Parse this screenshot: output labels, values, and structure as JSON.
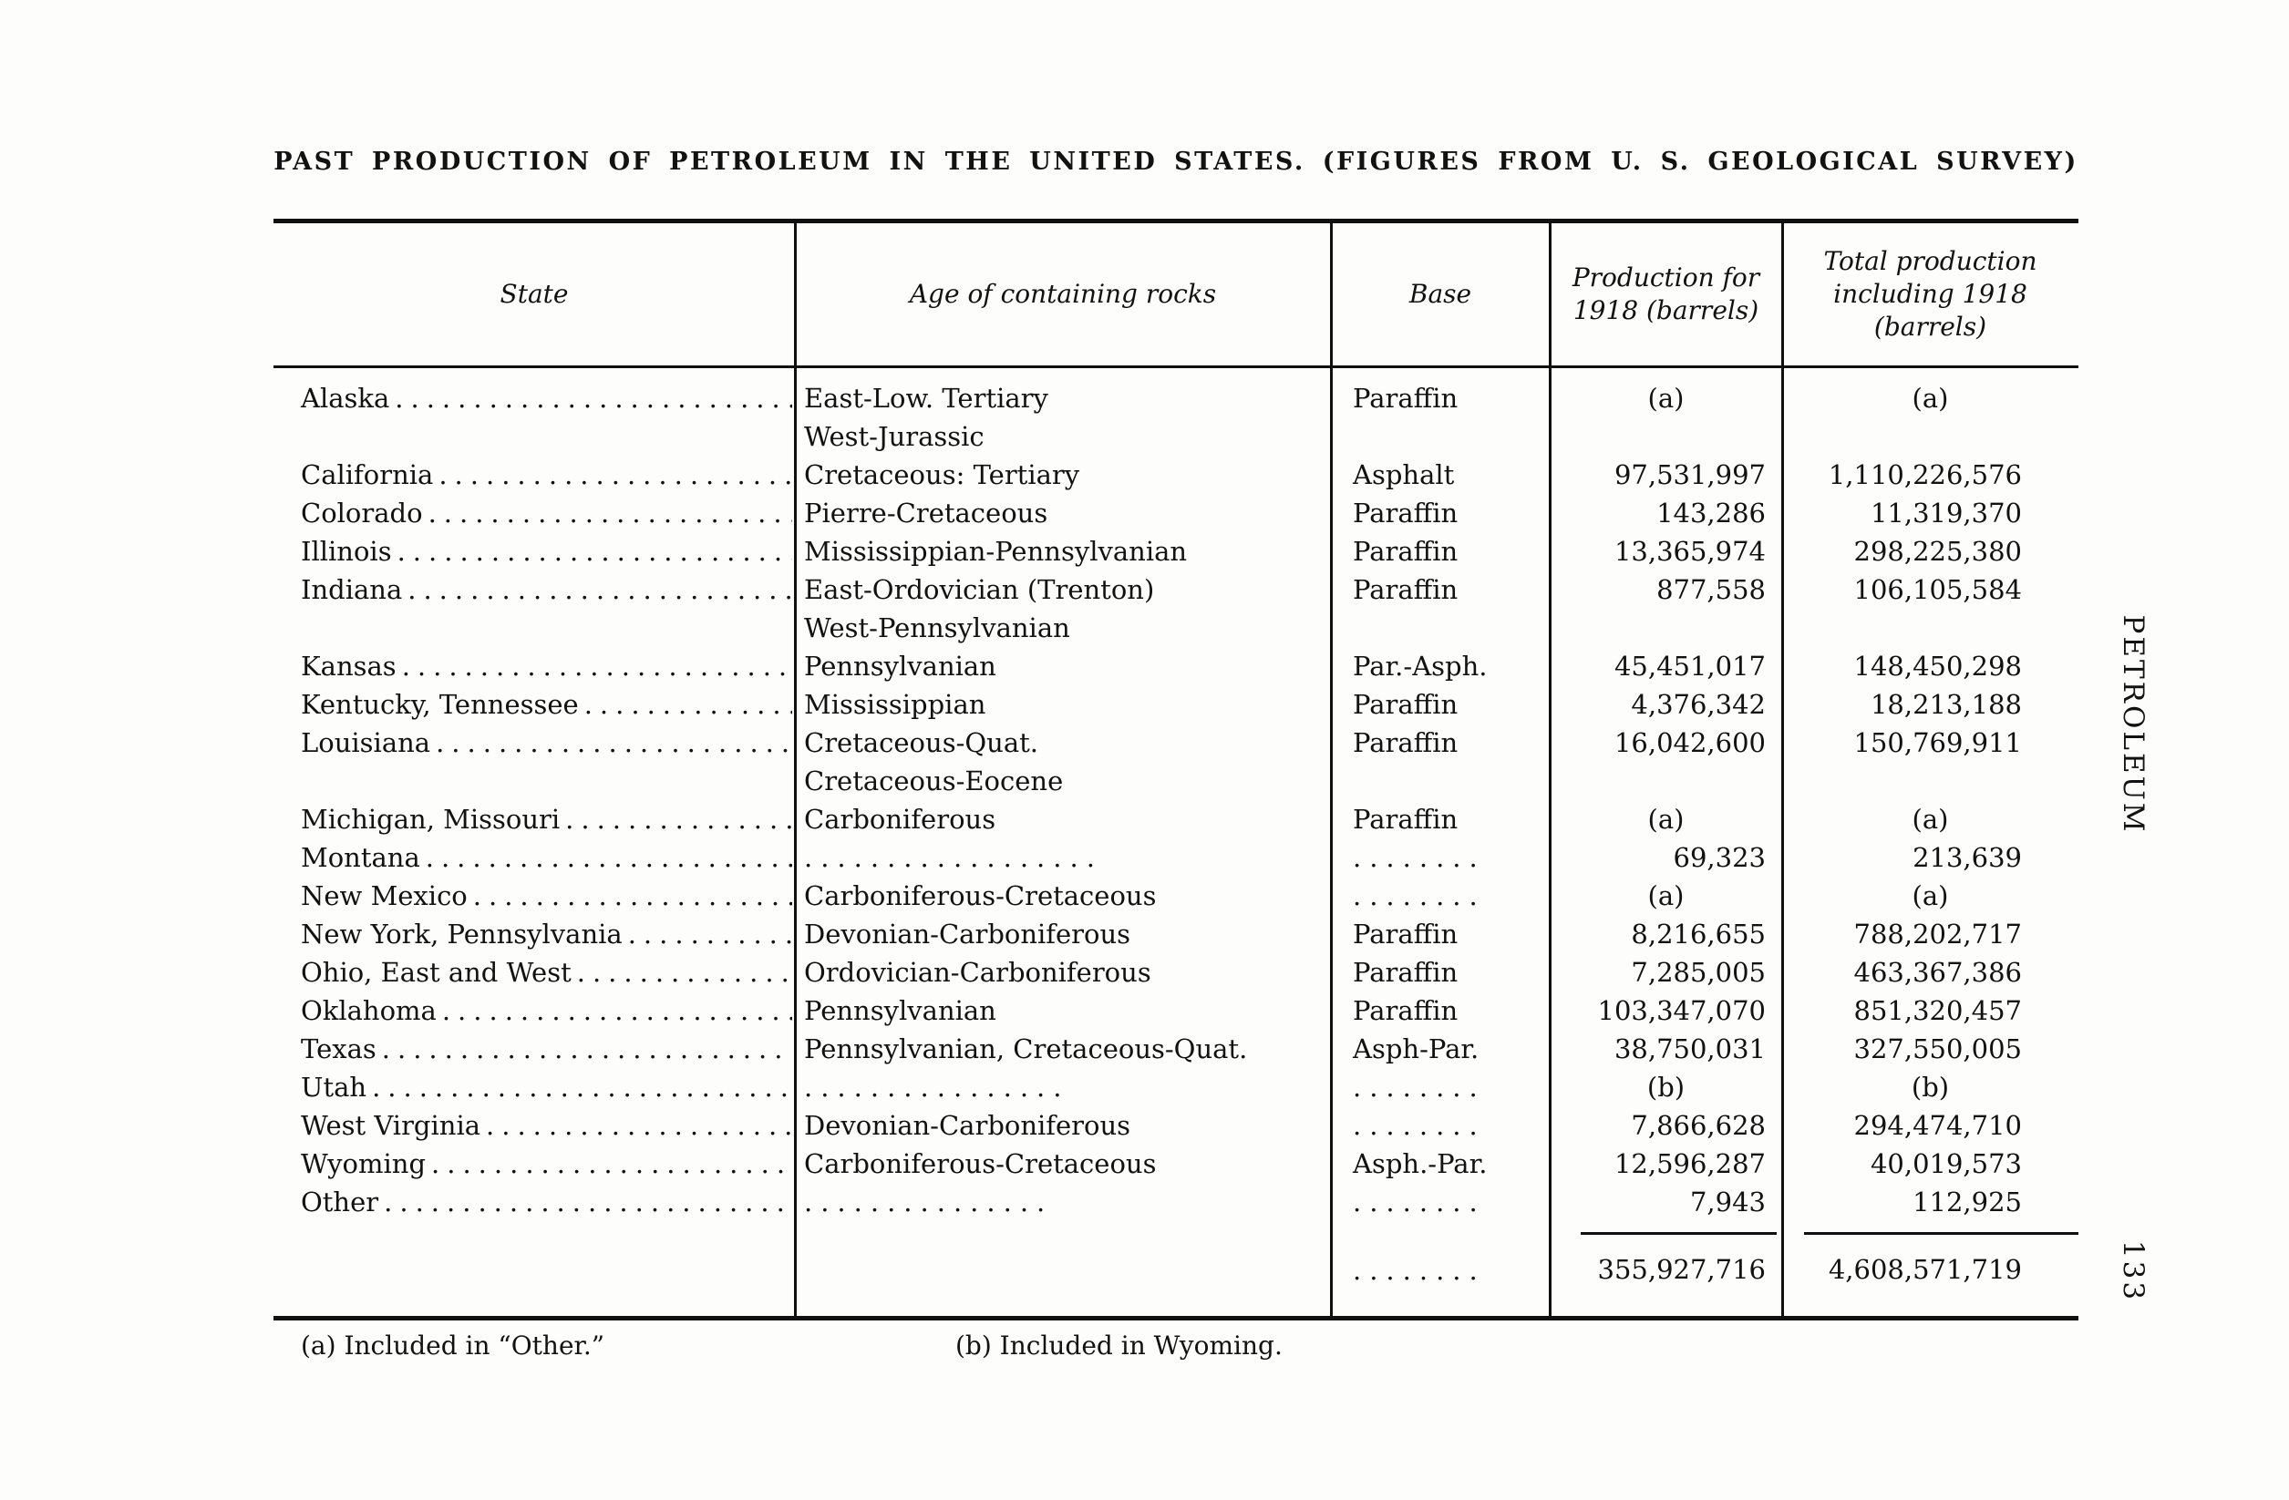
{
  "page": {
    "title": "PAST PRODUCTION OF PETROLEUM IN THE UNITED STATES. (FIGURES FROM U. S. GEOLOGICAL SURVEY)",
    "margin_label": "PETROLEUM",
    "page_number": "133"
  },
  "table": {
    "headers": [
      "State",
      "Age of containing rocks",
      "Base",
      "Production for\n1918 (barrels)",
      "Total production\nincluding 1918\n(barrels)"
    ],
    "rows": [
      {
        "state": "Alaska",
        "age": [
          "East-Low. Tertiary",
          "West-Jurassic"
        ],
        "base": "Paraffin",
        "production_1918": "(a)",
        "total_production": "(a)"
      },
      {
        "state": "California",
        "age": [
          "Cretaceous: Tertiary"
        ],
        "base": "Asphalt",
        "production_1918": "97,531,997",
        "total_production": "1,110,226,576"
      },
      {
        "state": "Colorado",
        "age": [
          "Pierre-Cretaceous"
        ],
        "base": "Paraffin",
        "production_1918": "143,286",
        "total_production": "11,319,370"
      },
      {
        "state": "Illinois",
        "age": [
          "Mississippian-Pennsylvanian"
        ],
        "base": "Paraffin",
        "production_1918": "13,365,974",
        "total_production": "298,225,380"
      },
      {
        "state": "Indiana",
        "age": [
          "East-Ordovician (Trenton)",
          "West-Pennsylvanian"
        ],
        "base": "Paraffin",
        "production_1918": "877,558",
        "total_production": "106,105,584"
      },
      {
        "state": "Kansas",
        "age": [
          "Pennsylvanian"
        ],
        "base": "Par.-Asph.",
        "production_1918": "45,451,017",
        "total_production": "148,450,298"
      },
      {
        "state": "Kentucky, Tennessee",
        "age": [
          "Mississippian"
        ],
        "base": "Paraffin",
        "production_1918": "4,376,342",
        "total_production": "18,213,188"
      },
      {
        "state": "Louisiana",
        "age": [
          "Cretaceous-Quat.",
          "Cretaceous-Eocene"
        ],
        "base": "Paraffin",
        "production_1918": "16,042,600",
        "total_production": "150,769,911"
      },
      {
        "state": "Michigan, Missouri",
        "age": [
          "Carboniferous"
        ],
        "base": "Paraffin",
        "production_1918": "(a)",
        "total_production": "(a)"
      },
      {
        "state": "Montana",
        "age": [
          ".................."
        ],
        "base": "........",
        "production_1918": "69,323",
        "total_production": "213,639"
      },
      {
        "state": "New Mexico",
        "age": [
          "Carboniferous-Cretaceous"
        ],
        "base": "........",
        "production_1918": "(a)",
        "total_production": "(a)"
      },
      {
        "state": "New York, Pennsylvania",
        "age": [
          "Devonian-Carboniferous"
        ],
        "base": "Paraffin",
        "production_1918": "8,216,655",
        "total_production": "788,202,717"
      },
      {
        "state": "Ohio, East and West",
        "age": [
          "Ordovician-Carboniferous"
        ],
        "base": "Paraffin",
        "production_1918": "7,285,005",
        "total_production": "463,367,386"
      },
      {
        "state": "Oklahoma",
        "age": [
          "Pennsylvanian"
        ],
        "base": "Paraffin",
        "production_1918": "103,347,070",
        "total_production": "851,320,457"
      },
      {
        "state": "Texas",
        "age": [
          "Pennsylvanian, Cretaceous-Quat."
        ],
        "base": "Asph-Par.",
        "production_1918": "38,750,031",
        "total_production": "327,550,005"
      },
      {
        "state": "Utah",
        "age": [
          "................"
        ],
        "base": "........",
        "production_1918": "(b)",
        "total_production": "(b)"
      },
      {
        "state": "West Virginia",
        "age": [
          "Devonian-Carboniferous"
        ],
        "base": "........",
        "production_1918": "7,866,628",
        "total_production": "294,474,710"
      },
      {
        "state": "Wyoming",
        "age": [
          "Carboniferous-Cretaceous"
        ],
        "base": "Asph.-Par.",
        "production_1918": "12,596,287",
        "total_production": "40,019,573"
      },
      {
        "state": "Other",
        "age": [
          "..............."
        ],
        "base": "........",
        "production_1918": "7,943",
        "total_production": "112,925"
      }
    ],
    "totals": {
      "base": "........",
      "production_1918": "355,927,716",
      "total_production": "4,608,571,719"
    },
    "footnotes": [
      "(a) Included in “Other.”",
      "(b) Included in Wyoming."
    ]
  }
}
